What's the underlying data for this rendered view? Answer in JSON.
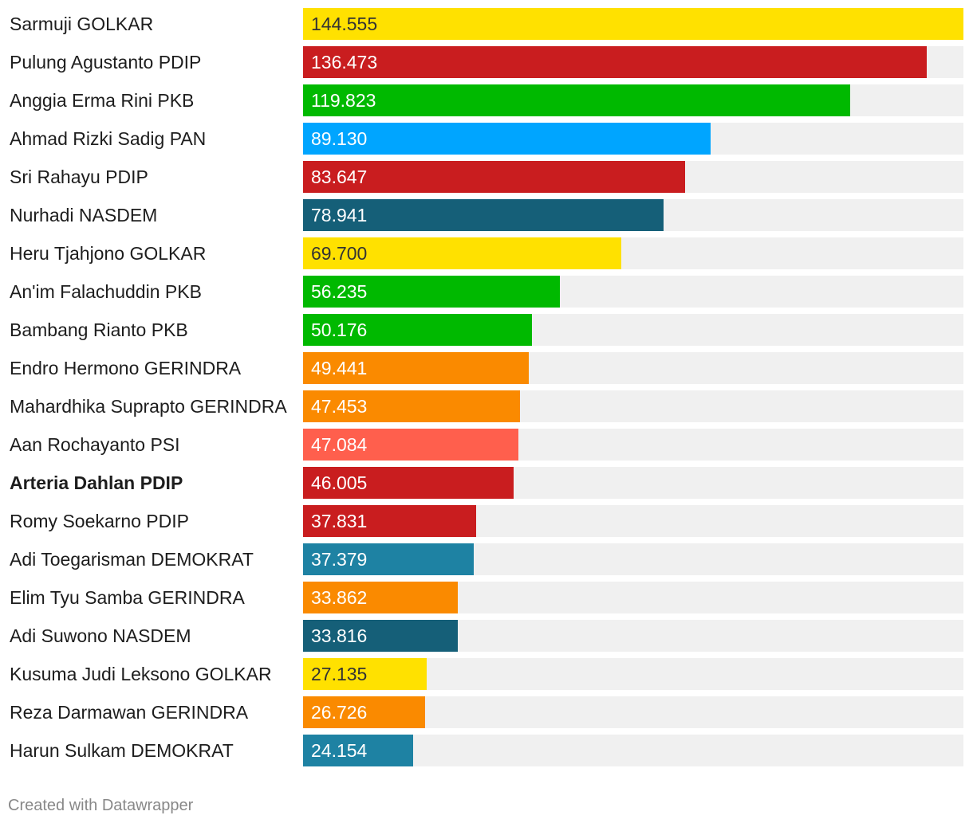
{
  "chart_data": {
    "type": "bar",
    "orientation": "horizontal",
    "xlim": [
      0,
      144.555
    ],
    "categories": [
      "Sarmuji GOLKAR",
      "Pulung Agustanto PDIP",
      "Anggia Erma Rini PKB",
      "Ahmad Rizki Sadig PAN",
      "Sri Rahayu PDIP",
      "Nurhadi NASDEM",
      "Heru Tjahjono GOLKAR",
      "An'im Falachuddin PKB",
      "Bambang Rianto PKB",
      "Endro Hermono GERINDRA",
      "Mahardhika Suprapto GERINDRA",
      "Aan Rochayanto PSI",
      "Arteria Dahlan PDIP",
      "Romy Soekarno PDIP",
      "Adi Toegarisman DEMOKRAT",
      "Elim Tyu Samba GERINDRA",
      "Adi Suwono NASDEM",
      "Kusuma Judi Leksono GOLKAR",
      "Reza Darmawan GERINDRA",
      "Harun Sulkam DEMOKRAT"
    ],
    "values": [
      144.555,
      136.473,
      119.823,
      89.13,
      83.647,
      78.941,
      69.7,
      56.235,
      50.176,
      49.441,
      47.453,
      47.084,
      46.005,
      37.831,
      37.379,
      33.862,
      33.816,
      27.135,
      26.726,
      24.154
    ],
    "value_labels": [
      "144.555",
      "136.473",
      "119.823",
      "89.130",
      "83.647",
      "78.941",
      "69.700",
      "56.235",
      "50.176",
      "49.441",
      "47.453",
      "47.084",
      "46.005",
      "37.831",
      "37.379",
      "33.862",
      "33.816",
      "27.135",
      "26.726",
      "24.154"
    ],
    "colors": [
      "#ffe100",
      "#c91d1f",
      "#00b900",
      "#00a5ff",
      "#c91d1f",
      "#155f78",
      "#ffe100",
      "#00b900",
      "#00b900",
      "#fa8a00",
      "#fa8a00",
      "#ff5f4d",
      "#c91d1f",
      "#c91d1f",
      "#1e82a3",
      "#fa8a00",
      "#155f78",
      "#ffe100",
      "#fa8a00",
      "#1e82a3"
    ],
    "dark_text_rows": [
      0,
      6,
      17
    ],
    "bold_rows": [
      12
    ],
    "bar_background": "#f0f0f0"
  },
  "footer": {
    "credit": "Created with Datawrapper"
  }
}
